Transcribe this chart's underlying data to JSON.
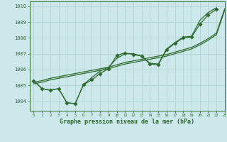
{
  "xlabel": "Graphe pression niveau de la mer (hPa)",
  "background_color": "#cce8ea",
  "grid_color": "#aacfcf",
  "line_color": "#2d6a2d",
  "xlim": [
    -0.5,
    23
  ],
  "ylim": [
    1003.4,
    1010.3
  ],
  "yticks": [
    1004,
    1005,
    1006,
    1007,
    1008,
    1009,
    1010
  ],
  "xticks": [
    0,
    1,
    2,
    3,
    4,
    5,
    6,
    7,
    8,
    9,
    10,
    11,
    12,
    13,
    14,
    15,
    16,
    17,
    18,
    19,
    20,
    21,
    22,
    23
  ],
  "series_marked": [
    1005.3,
    1004.8,
    1004.7,
    1004.8,
    1003.9,
    1003.85,
    1005.05,
    1005.35,
    1005.75,
    1006.05,
    1006.9,
    1007.05,
    1006.95,
    1006.85,
    1006.35,
    1006.3,
    1007.25,
    1007.65,
    1008.0,
    1008.05,
    1008.85,
    1009.45,
    1009.8
  ],
  "series_straight1": [
    1005.2,
    1005.3,
    1005.45,
    1005.55,
    1005.65,
    1005.75,
    1005.85,
    1005.95,
    1006.05,
    1006.15,
    1006.3,
    1006.45,
    1006.55,
    1006.65,
    1006.75,
    1006.85,
    1006.95,
    1007.1,
    1007.25,
    1007.4,
    1007.65,
    1007.95,
    1008.3,
    1009.85
  ],
  "series_straight2": [
    1005.1,
    1005.2,
    1005.35,
    1005.45,
    1005.55,
    1005.65,
    1005.75,
    1005.85,
    1005.95,
    1006.05,
    1006.2,
    1006.35,
    1006.45,
    1006.55,
    1006.65,
    1006.75,
    1006.85,
    1007.0,
    1007.15,
    1007.3,
    1007.55,
    1007.85,
    1008.2,
    1009.75
  ],
  "series_wavy": [
    1005.3,
    1004.8,
    1004.7,
    1004.8,
    1003.9,
    1003.85,
    1005.05,
    1005.5,
    1005.9,
    1006.15,
    1006.7,
    1007.0,
    1007.0,
    1006.85,
    1006.4,
    1006.35,
    1007.3,
    1007.7,
    1008.05,
    1008.1,
    1009.1,
    1009.6,
    1009.9
  ],
  "marker": "D",
  "markersize": 2.8,
  "linewidth": 0.9
}
